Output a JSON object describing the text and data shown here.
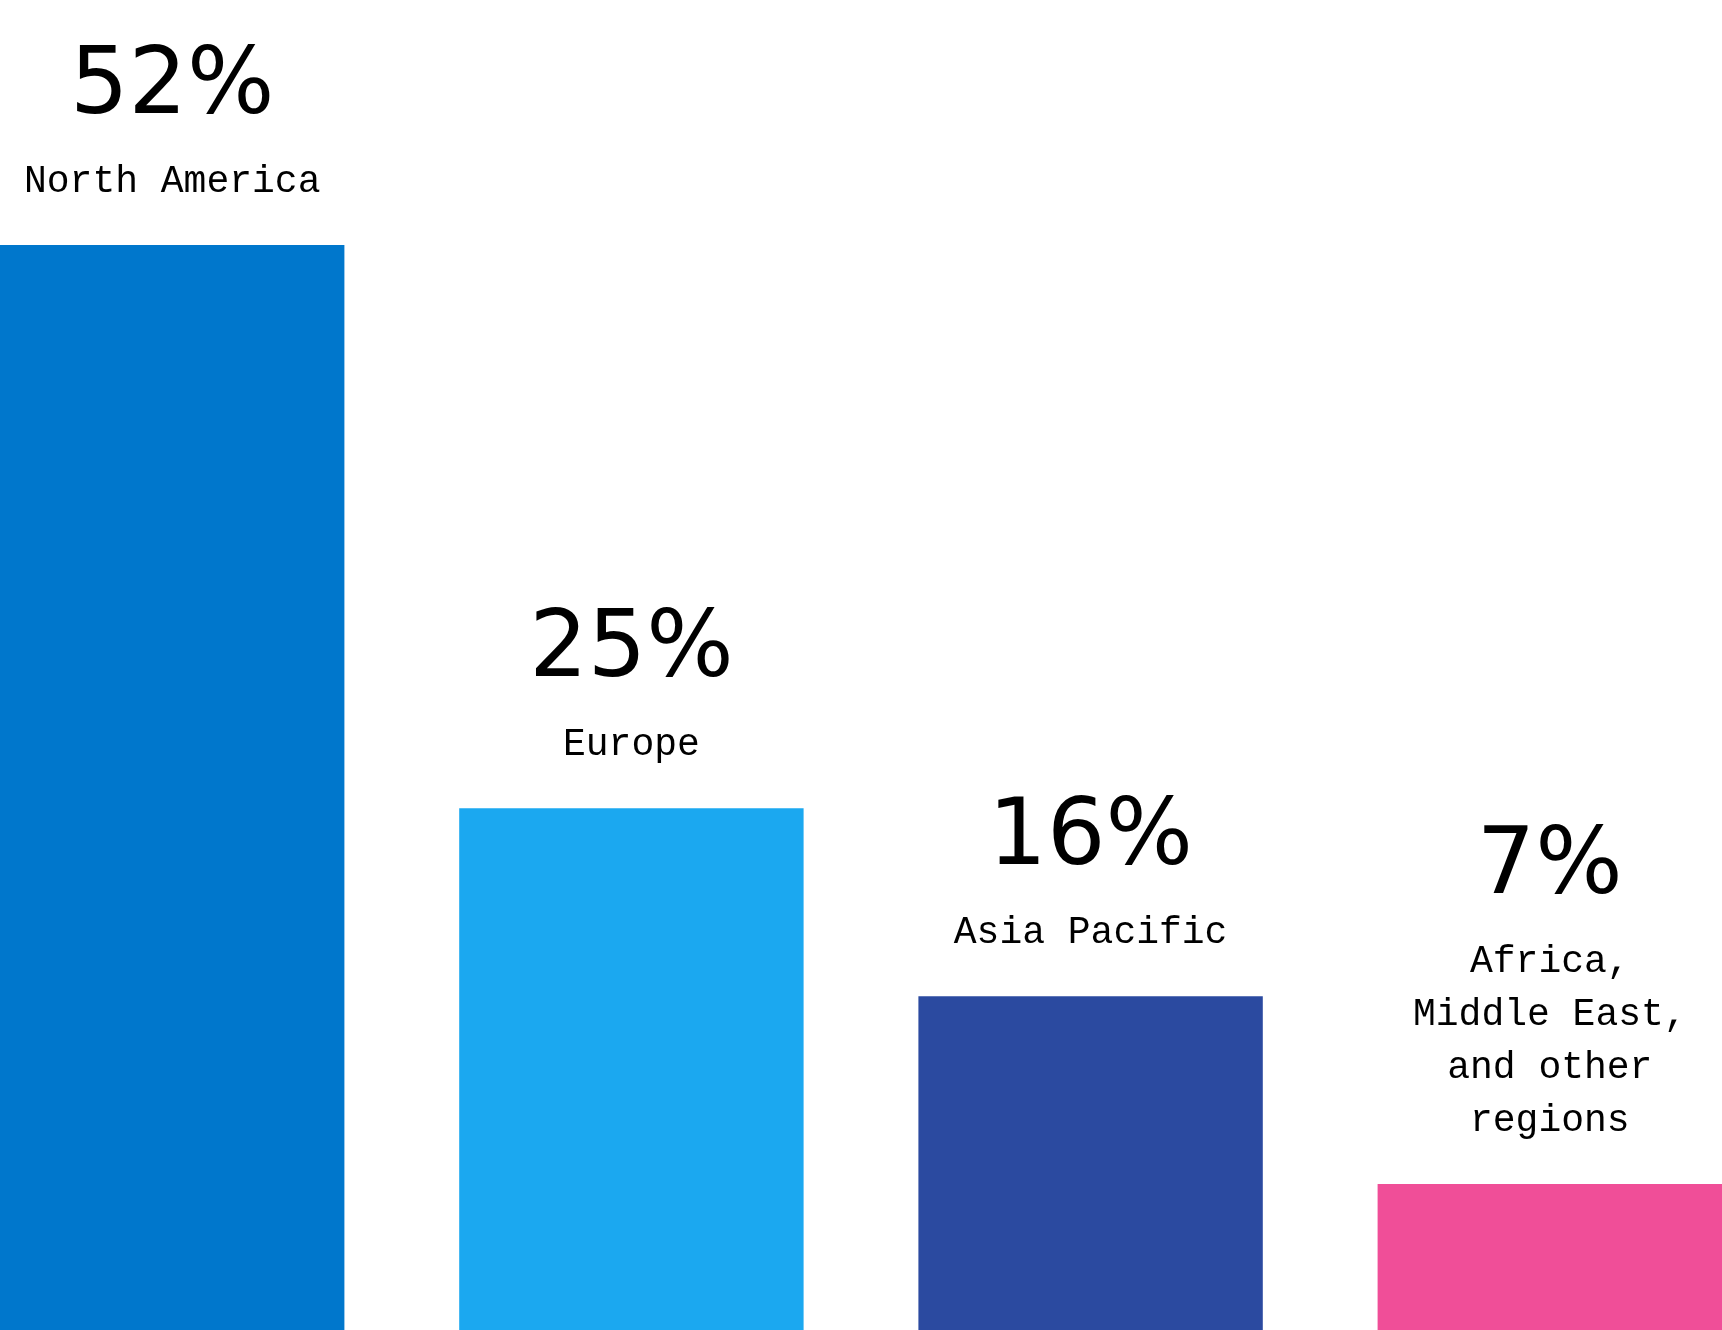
{
  "chart_data": {
    "type": "bar",
    "categories": [
      "North America",
      "Europe",
      "Asia Pacific",
      "Africa, Middle East, and other regions"
    ],
    "values": [
      52,
      25,
      16,
      7
    ],
    "value_labels": [
      "52%",
      "25%",
      "16%",
      "7%"
    ],
    "colors": [
      "#0077cc",
      "#1ba8f0",
      "#2b4aa0",
      "#f04e98"
    ]
  }
}
